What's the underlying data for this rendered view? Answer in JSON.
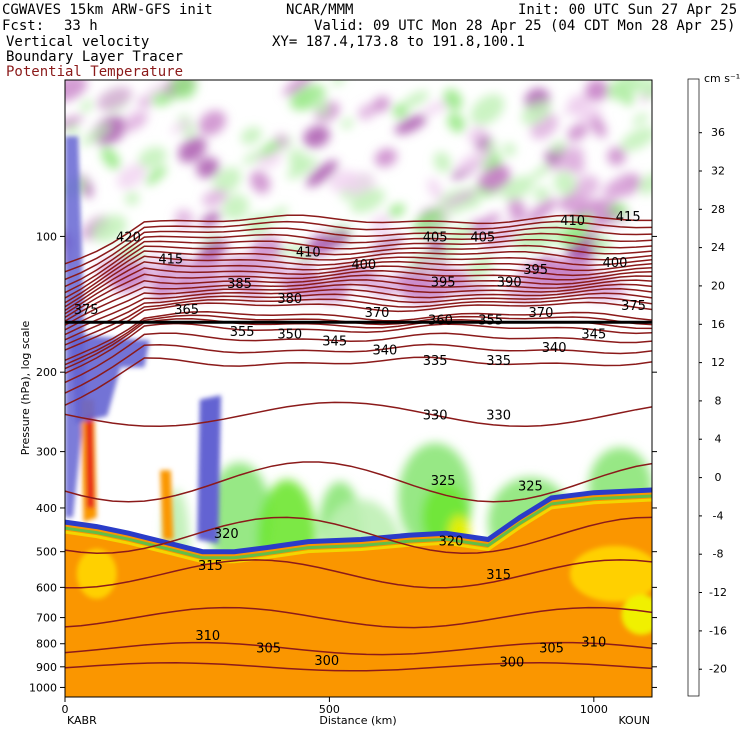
{
  "header": {
    "model": "CGWAVES 15km ARW-GFS init",
    "org": "NCAR/MMM",
    "init": "Init: 00 UTC Sun 27 Apr 25",
    "fcst_label": "Fcst:",
    "fcst_value": "33 h",
    "valid": "Valid: 09 UTC Mon 28 Apr 25 (04 CDT Mon 28 Apr 25)",
    "field1": "Vertical velocity",
    "xy": "XY= 187.4,173.8 to 191.8,100.1",
    "field2": "Boundary Layer Tracer",
    "field3": "Potential Temperature",
    "field3_color": "#8b1a1a"
  },
  "chart_data": {
    "type": "heatmap",
    "title": "",
    "xlabel": "Distance (km)",
    "ylabel": "Pressure (hPa), log scale",
    "y_scale": "log",
    "xlim": [
      0,
      1110
    ],
    "ylim": [
      1050,
      45
    ],
    "x_ticks": [
      "0",
      "500",
      "1000"
    ],
    "x_tick_values": [
      0,
      500,
      1000
    ],
    "y_ticks": [
      "100",
      "200",
      "300",
      "400",
      "500",
      "600",
      "700",
      "800",
      "900",
      "1000"
    ],
    "y_tick_values": [
      100,
      200,
      300,
      400,
      500,
      600,
      700,
      800,
      900,
      1000
    ],
    "endpoints": {
      "left": "KABR",
      "right": "KOUN"
    },
    "colorbar": {
      "unit": "cm s⁻¹",
      "labels": [
        "36",
        "32",
        "28",
        "24",
        "20",
        "16",
        "12",
        "8",
        "4",
        "0",
        "-4",
        "-8",
        "-12",
        "-16",
        "-20"
      ],
      "colors": [
        "#e6001e",
        "#f03c00",
        "#f56e00",
        "#fa9600",
        "#ffb400",
        "#ffd000",
        "#f0f000",
        "#b4f000",
        "#6ee632",
        "#3cc85a",
        "#8ce678",
        "#bef0b4",
        "#e6fae6",
        "#ffffff",
        "#ffffff",
        "#f0d2f0",
        "#dcaadc",
        "#c882c8",
        "#a550aa",
        "#8c3296",
        "#7850b4",
        "#6464d2",
        "#8c8cf0"
      ]
    },
    "theta_labels": [
      {
        "value": "420",
        "x": 120,
        "p": 100
      },
      {
        "value": "415",
        "x": 200,
        "p": 112
      },
      {
        "value": "410",
        "x": 460,
        "p": 108
      },
      {
        "value": "405",
        "x": 700,
        "p": 100
      },
      {
        "value": "405",
        "x": 790,
        "p": 100
      },
      {
        "value": "410",
        "x": 960,
        "p": 92
      },
      {
        "value": "415",
        "x": 1065,
        "p": 90
      },
      {
        "value": "400",
        "x": 565,
        "p": 115
      },
      {
        "value": "395",
        "x": 715,
        "p": 126
      },
      {
        "value": "390",
        "x": 840,
        "p": 126
      },
      {
        "value": "395",
        "x": 890,
        "p": 118
      },
      {
        "value": "400",
        "x": 1040,
        "p": 114
      },
      {
        "value": "385",
        "x": 330,
        "p": 127
      },
      {
        "value": "380",
        "x": 425,
        "p": 137
      },
      {
        "value": "375",
        "x": 40,
        "p": 145
      },
      {
        "value": "365",
        "x": 230,
        "p": 145
      },
      {
        "value": "370",
        "x": 590,
        "p": 147
      },
      {
        "value": "360",
        "x": 710,
        "p": 153
      },
      {
        "value": "355",
        "x": 805,
        "p": 153
      },
      {
        "value": "370",
        "x": 900,
        "p": 147
      },
      {
        "value": "375",
        "x": 1075,
        "p": 142
      },
      {
        "value": "355",
        "x": 335,
        "p": 162
      },
      {
        "value": "350",
        "x": 425,
        "p": 164
      },
      {
        "value": "345",
        "x": 510,
        "p": 170
      },
      {
        "value": "340",
        "x": 605,
        "p": 178
      },
      {
        "value": "335",
        "x": 700,
        "p": 188
      },
      {
        "value": "335",
        "x": 820,
        "p": 188
      },
      {
        "value": "340",
        "x": 925,
        "p": 176
      },
      {
        "value": "345",
        "x": 1000,
        "p": 164
      },
      {
        "value": "330",
        "x": 700,
        "p": 248
      },
      {
        "value": "330",
        "x": 820,
        "p": 248
      },
      {
        "value": "325",
        "x": 715,
        "p": 347
      },
      {
        "value": "325",
        "x": 880,
        "p": 357
      },
      {
        "value": "320",
        "x": 305,
        "p": 455
      },
      {
        "value": "320",
        "x": 730,
        "p": 472
      },
      {
        "value": "315",
        "x": 275,
        "p": 535
      },
      {
        "value": "315",
        "x": 820,
        "p": 560
      },
      {
        "value": "310",
        "x": 270,
        "p": 765
      },
      {
        "value": "305",
        "x": 385,
        "p": 815
      },
      {
        "value": "300",
        "x": 495,
        "p": 870
      },
      {
        "value": "300",
        "x": 845,
        "p": 875
      },
      {
        "value": "305",
        "x": 920,
        "p": 815
      },
      {
        "value": "310",
        "x": 1000,
        "p": 790
      }
    ]
  }
}
